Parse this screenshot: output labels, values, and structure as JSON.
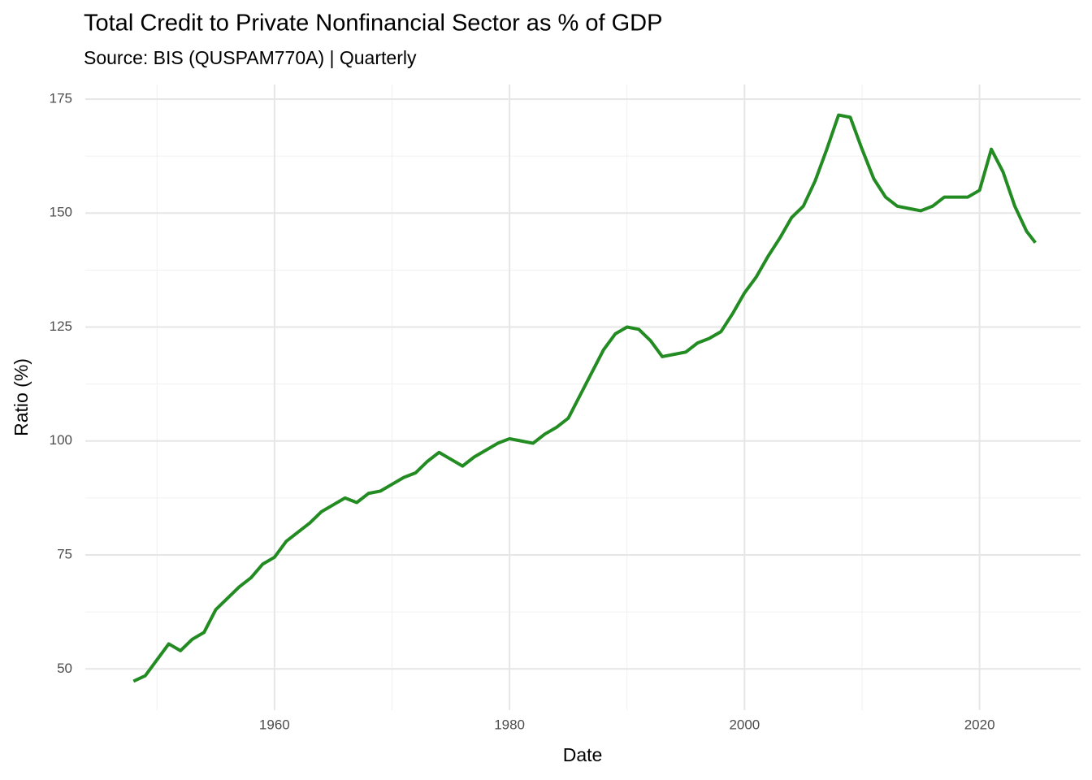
{
  "chart_data": {
    "type": "line",
    "title": "Total Credit to Private Nonfinancial Sector as % of GDP",
    "subtitle": "Source: BIS (QUSPAM770A) | Quarterly",
    "x_label": "Date",
    "y_label": "Ratio (%)",
    "x": [
      1948,
      1949,
      1950,
      1951,
      1952,
      1953,
      1954,
      1955,
      1956,
      1957,
      1958,
      1959,
      1960,
      1961,
      1962,
      1963,
      1964,
      1965,
      1966,
      1967,
      1968,
      1969,
      1970,
      1971,
      1972,
      1973,
      1974,
      1975,
      1976,
      1977,
      1978,
      1979,
      1980,
      1981,
      1982,
      1983,
      1984,
      1985,
      1986,
      1987,
      1988,
      1989,
      1990,
      1991,
      1992,
      1993,
      1994,
      1995,
      1996,
      1997,
      1998,
      1999,
      2000,
      2001,
      2002,
      2003,
      2004,
      2005,
      2006,
      2007,
      2008,
      2009,
      2010,
      2011,
      2012,
      2013,
      2014,
      2015,
      2016,
      2017,
      2018,
      2019,
      2020,
      2021,
      2022,
      2023,
      2024,
      2024.75
    ],
    "series": [
      {
        "name": "Ratio (%)",
        "color": "#228b22",
        "values": [
          47.3,
          48.5,
          52,
          55.5,
          54,
          56.5,
          58,
          63,
          65.5,
          68,
          70,
          73,
          74.5,
          78,
          80,
          82,
          84.5,
          86,
          87.5,
          86.5,
          88.5,
          89,
          90.5,
          92,
          93,
          95.5,
          97.5,
          96,
          94.5,
          96.5,
          98,
          99.5,
          100.5,
          100,
          99.5,
          101.5,
          103,
          105,
          110,
          115,
          120,
          123.5,
          125,
          124.5,
          122,
          118.5,
          119,
          119.5,
          121.5,
          122.5,
          124,
          128,
          132.5,
          136,
          140.5,
          144.5,
          149,
          151.5,
          157,
          164,
          171.5,
          171,
          164,
          157.5,
          153.5,
          151.5,
          151,
          150.5,
          151.5,
          153.5,
          153.5,
          153.5,
          155,
          164,
          159,
          151.5,
          146,
          143.5
        ]
      }
    ],
    "xlim": [
      1943.9,
      2028.6
    ],
    "ylim": [
      40.96,
      178.2
    ],
    "xticks": [
      1960,
      1980,
      2000,
      2020
    ],
    "yticks": [
      50,
      75,
      100,
      125,
      150,
      175
    ],
    "xminor": [
      1950,
      1970,
      1990,
      2010
    ],
    "yminor": [
      62.5,
      87.5,
      112.5,
      137.5,
      162.5
    ],
    "grid": true
  }
}
